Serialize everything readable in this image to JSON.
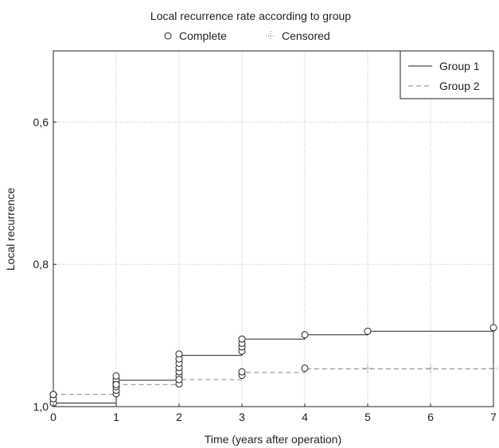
{
  "chart_data": {
    "type": "line",
    "title": "Local recurrence rate according to group",
    "marker_legend": {
      "complete_label": "Complete",
      "censored_label": "Censored",
      "complete_marker": "open-circle",
      "censored_marker": "dotted-cross"
    },
    "xlabel": "Time (years after operation)",
    "ylabel": "Local recurrence",
    "xlim": [
      0,
      7
    ],
    "ylim": [
      0.5,
      1.0
    ],
    "y_inverted": true,
    "grid": true,
    "legend_position": "top-right",
    "x_ticks": [
      {
        "value": 0,
        "label": "0"
      },
      {
        "value": 1,
        "label": "1"
      },
      {
        "value": 2,
        "label": "2"
      },
      {
        "value": 3,
        "label": "3"
      },
      {
        "value": 4,
        "label": "4"
      },
      {
        "value": 5,
        "label": "5"
      },
      {
        "value": 6,
        "label": "6"
      },
      {
        "value": 7,
        "label": "7"
      }
    ],
    "y_ticks": [
      {
        "value": 0.6,
        "label": "0,6"
      },
      {
        "value": 0.8,
        "label": "0,8"
      },
      {
        "value": 1.0,
        "label": "1,0"
      }
    ],
    "series": [
      {
        "name": "Group 1",
        "style": "solid",
        "color": "#222222",
        "step_points": [
          {
            "x": 0,
            "y": 0.995
          },
          {
            "x": 1,
            "y": 0.963
          },
          {
            "x": 2,
            "y": 0.928
          },
          {
            "x": 3,
            "y": 0.905
          },
          {
            "x": 4,
            "y": 0.899
          },
          {
            "x": 5,
            "y": 0.894
          },
          {
            "x": 7,
            "y": 0.894
          }
        ],
        "complete_markers": [
          {
            "x": 0,
            "y": 0.995
          },
          {
            "x": 0,
            "y": 0.989
          },
          {
            "x": 0,
            "y": 0.983
          },
          {
            "x": 1,
            "y": 0.982
          },
          {
            "x": 1,
            "y": 0.977
          },
          {
            "x": 1,
            "y": 0.972
          },
          {
            "x": 1,
            "y": 0.967
          },
          {
            "x": 1,
            "y": 0.962
          },
          {
            "x": 1,
            "y": 0.957
          },
          {
            "x": 2,
            "y": 0.957
          },
          {
            "x": 2,
            "y": 0.951
          },
          {
            "x": 2,
            "y": 0.945
          },
          {
            "x": 2,
            "y": 0.939
          },
          {
            "x": 2,
            "y": 0.933
          },
          {
            "x": 2,
            "y": 0.926
          },
          {
            "x": 3,
            "y": 0.922
          },
          {
            "x": 3,
            "y": 0.916
          },
          {
            "x": 3,
            "y": 0.911
          },
          {
            "x": 3,
            "y": 0.905
          },
          {
            "x": 4,
            "y": 0.899
          },
          {
            "x": 5,
            "y": 0.894
          },
          {
            "x": 7,
            "y": 0.889
          }
        ]
      },
      {
        "name": "Group 2",
        "style": "dashed",
        "color": "#888888",
        "step_points": [
          {
            "x": 0,
            "y": 0.983
          },
          {
            "x": 1,
            "y": 0.969
          },
          {
            "x": 2,
            "y": 0.962
          },
          {
            "x": 3,
            "y": 0.952
          },
          {
            "x": 4,
            "y": 0.947
          },
          {
            "x": 7,
            "y": 0.947
          }
        ],
        "complete_markers": [
          {
            "x": 0,
            "y": 0.983
          },
          {
            "x": 1,
            "y": 0.969
          },
          {
            "x": 2,
            "y": 0.968
          },
          {
            "x": 2,
            "y": 0.962
          },
          {
            "x": 3,
            "y": 0.956
          },
          {
            "x": 3,
            "y": 0.951
          },
          {
            "x": 4,
            "y": 0.946
          }
        ],
        "censored_markers": [
          {
            "x": 5,
            "y": 0.946
          },
          {
            "x": 6,
            "y": 0.946
          },
          {
            "x": 7,
            "y": 0.946
          }
        ]
      }
    ]
  }
}
